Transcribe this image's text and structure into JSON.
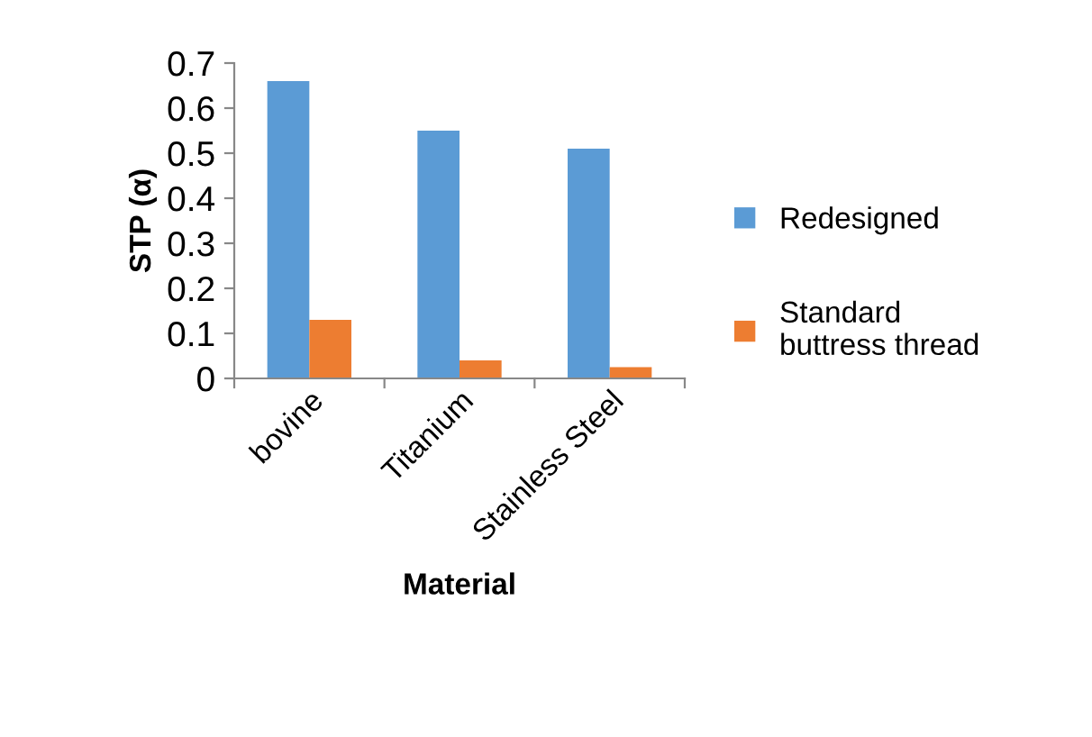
{
  "chart_data": {
    "type": "bar",
    "xlabel": "Material",
    "ylabel": "STP (α)",
    "categories": [
      "bovine",
      "Titanium",
      "Stainless Steel"
    ],
    "series": [
      {
        "name": "Redesigned",
        "color": "#5b9bd5",
        "values": [
          0.66,
          0.55,
          0.51
        ]
      },
      {
        "name": "Standard\nbuttress thread",
        "color": "#ed7d31",
        "values": [
          0.13,
          0.04,
          0.025
        ]
      }
    ],
    "ylim": [
      0,
      0.7
    ],
    "yticks": [
      {
        "value": 0,
        "label": "0"
      },
      0.1,
      0.2,
      0.3,
      0.4,
      0.5,
      0.6,
      0.7
    ],
    "grid": false,
    "legend": "right"
  }
}
